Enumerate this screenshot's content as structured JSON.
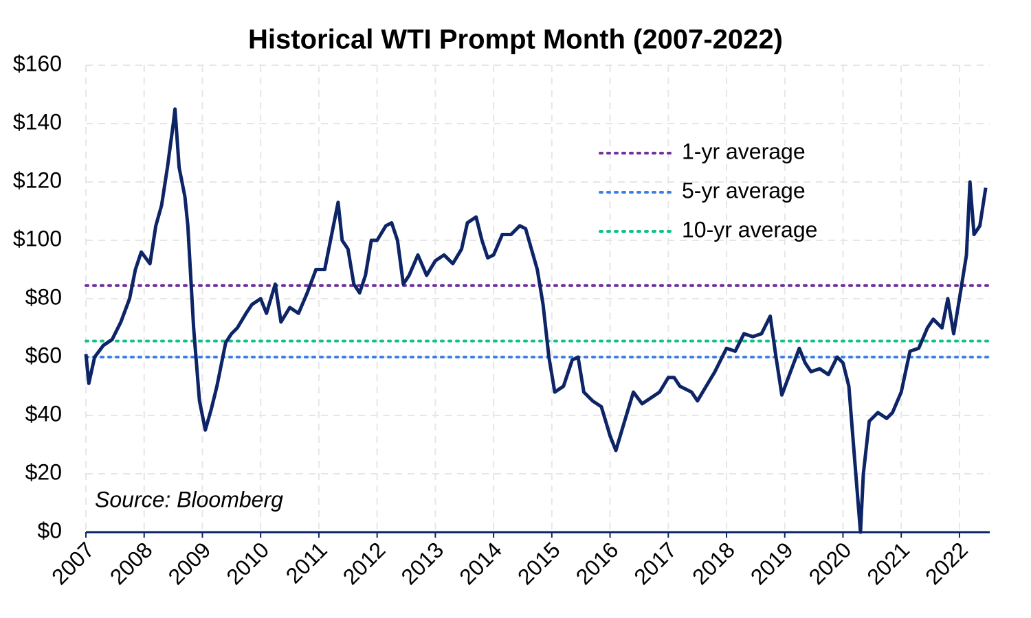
{
  "chart_data": {
    "type": "line",
    "title": "Historical WTI Prompt Month (2007-2022)",
    "annotation": "Source: Bloomberg",
    "xlim": [
      2007,
      2022.52
    ],
    "xticks": [
      2007,
      2008,
      2009,
      2010,
      2011,
      2012,
      2013,
      2014,
      2015,
      2016,
      2017,
      2018,
      2019,
      2020,
      2021,
      2022
    ],
    "ylim": [
      0,
      160
    ],
    "yticks": [
      {
        "value": 0,
        "label": "$0"
      },
      {
        "value": 20,
        "label": "$20"
      },
      {
        "value": 40,
        "label": "$40"
      },
      {
        "value": 60,
        "label": "$60"
      },
      {
        "value": 80,
        "label": "$80"
      },
      {
        "value": 100,
        "label": "$100"
      },
      {
        "value": 120,
        "label": "$120"
      },
      {
        "value": 140,
        "label": "$140"
      },
      {
        "value": 160,
        "label": "$160"
      }
    ],
    "grid": true,
    "legend": "upper right",
    "series": [
      {
        "color": "#0d2466",
        "x": [
          2007.0,
          2007.05,
          2007.15,
          2007.3,
          2007.45,
          2007.6,
          2007.75,
          2007.85,
          2007.95,
          2008.1,
          2008.2,
          2008.3,
          2008.4,
          2008.5,
          2008.53,
          2008.6,
          2008.7,
          2008.75,
          2008.85,
          2008.95,
          2009.0,
          2009.05,
          2009.15,
          2009.25,
          2009.4,
          2009.5,
          2009.6,
          2009.75,
          2009.85,
          2010.0,
          2010.1,
          2010.25,
          2010.35,
          2010.5,
          2010.65,
          2010.8,
          2010.95,
          2011.1,
          2011.25,
          2011.33,
          2011.4,
          2011.5,
          2011.6,
          2011.7,
          2011.8,
          2011.9,
          2012.0,
          2012.15,
          2012.25,
          2012.35,
          2012.45,
          2012.55,
          2012.7,
          2012.85,
          2013.0,
          2013.15,
          2013.3,
          2013.45,
          2013.55,
          2013.7,
          2013.8,
          2013.9,
          2014.0,
          2014.15,
          2014.3,
          2014.45,
          2014.55,
          2014.65,
          2014.75,
          2014.85,
          2014.95,
          2015.05,
          2015.2,
          2015.35,
          2015.45,
          2015.55,
          2015.7,
          2015.85,
          2016.0,
          2016.1,
          2016.25,
          2016.4,
          2016.55,
          2016.7,
          2016.85,
          2017.0,
          2017.1,
          2017.2,
          2017.4,
          2017.5,
          2017.65,
          2017.8,
          2018.0,
          2018.15,
          2018.3,
          2018.45,
          2018.6,
          2018.75,
          2018.85,
          2018.95,
          2019.1,
          2019.25,
          2019.35,
          2019.45,
          2019.6,
          2019.75,
          2019.9,
          2020.0,
          2020.1,
          2020.2,
          2020.3,
          2020.35,
          2020.45,
          2020.6,
          2020.75,
          2020.85,
          2021.0,
          2021.15,
          2021.3,
          2021.45,
          2021.55,
          2021.7,
          2021.8,
          2021.9,
          2022.0,
          2022.12,
          2022.18,
          2022.25,
          2022.35,
          2022.45
        ],
        "values": [
          61,
          51,
          60,
          64,
          66,
          72,
          80,
          90,
          96,
          92,
          105,
          112,
          125,
          140,
          145,
          125,
          115,
          105,
          70,
          45,
          40,
          35,
          42,
          50,
          65,
          68,
          70,
          75,
          78,
          80,
          75,
          85,
          72,
          77,
          75,
          82,
          90,
          90,
          105,
          113,
          100,
          97,
          85,
          82,
          88,
          100,
          100,
          105,
          106,
          100,
          85,
          88,
          95,
          88,
          93,
          95,
          92,
          97,
          106,
          108,
          100,
          94,
          95,
          102,
          102,
          105,
          104,
          97,
          90,
          78,
          60,
          48,
          50,
          59,
          60,
          48,
          45,
          43,
          33,
          28,
          38,
          48,
          44,
          46,
          48,
          53,
          53,
          50,
          48,
          45,
          50,
          55,
          63,
          62,
          68,
          67,
          68,
          74,
          60,
          47,
          55,
          63,
          58,
          55,
          56,
          54,
          60,
          58,
          50,
          25,
          0,
          20,
          38,
          41,
          39,
          41,
          48,
          62,
          63,
          70,
          73,
          70,
          80,
          68,
          80,
          95,
          120,
          102,
          105,
          118
        ]
      }
    ],
    "reference_lines": [
      {
        "name": "1-yr average",
        "value": 84.5,
        "color": "#7030a0"
      },
      {
        "name": "5-yr average",
        "value": 60,
        "color": "#3a7ee8"
      },
      {
        "name": "10-yr average",
        "value": 65.5,
        "color": "#12c08a"
      }
    ]
  }
}
